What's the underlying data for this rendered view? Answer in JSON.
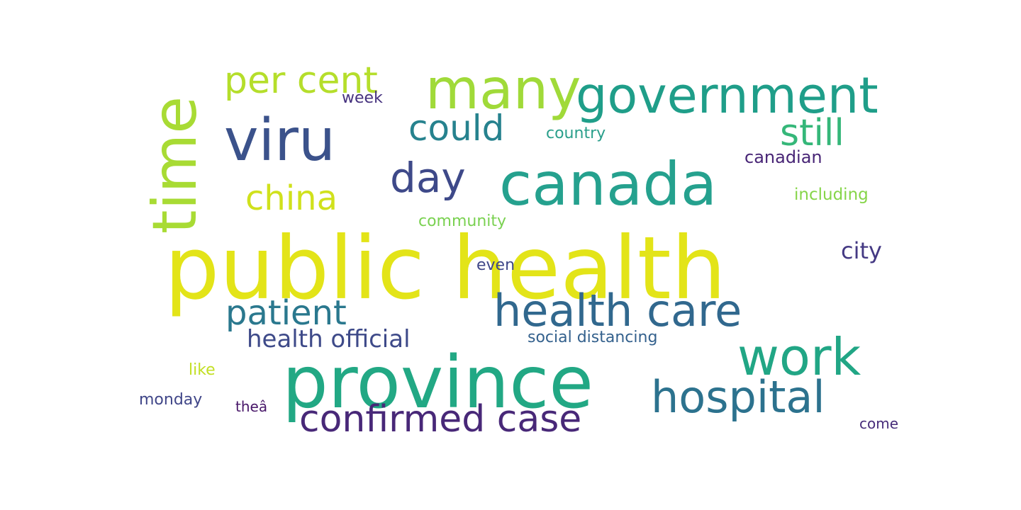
{
  "words": [
    {
      "text": "public health",
      "color": "#e3e418"
    },
    {
      "text": "province",
      "color": "#22a884"
    },
    {
      "text": "canada",
      "color": "#25a18e"
    },
    {
      "text": "time",
      "color": "#a8db34"
    },
    {
      "text": "viru",
      "color": "#3b528b"
    },
    {
      "text": "many",
      "color": "#a0da39"
    },
    {
      "text": "government",
      "color": "#1f9e89"
    },
    {
      "text": "health care",
      "color": "#31688e"
    },
    {
      "text": "work",
      "color": "#21a685"
    },
    {
      "text": "hospital",
      "color": "#2c728e"
    },
    {
      "text": "confirmed case",
      "color": "#482878"
    },
    {
      "text": "per cent",
      "color": "#b5de2b"
    },
    {
      "text": "could",
      "color": "#26828e"
    },
    {
      "text": "day",
      "color": "#3e4989"
    },
    {
      "text": "still",
      "color": "#35b779"
    },
    {
      "text": "china",
      "color": "#d0e11c"
    },
    {
      "text": "patient",
      "color": "#2a788e"
    },
    {
      "text": "health official",
      "color": "#3e4a89"
    },
    {
      "text": "city",
      "color": "#443983"
    },
    {
      "text": "week",
      "color": "#46327e"
    },
    {
      "text": "country",
      "color": "#2a9f8b"
    },
    {
      "text": "canadian",
      "color": "#482576"
    },
    {
      "text": "including",
      "color": "#86d549"
    },
    {
      "text": "community",
      "color": "#7ad151"
    },
    {
      "text": "even",
      "color": "#3f4788"
    },
    {
      "text": "social distancing",
      "color": "#34618d"
    },
    {
      "text": "like",
      "color": "#c2df23"
    },
    {
      "text": "monday",
      "color": "#404688"
    },
    {
      "text": "theâ",
      "color": "#481769"
    },
    {
      "text": "come",
      "color": "#472c7a"
    }
  ]
}
